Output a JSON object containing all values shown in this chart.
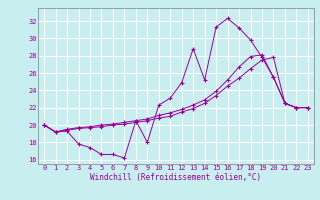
{
  "background_color": "#c8eef0",
  "line_color": "#990099",
  "grid_color": "#ffffff",
  "xlabel": "Windchill (Refroidissement éolien,°C)",
  "ylim_bottom": 15.5,
  "ylim_top": 33.5,
  "xlim_left": -0.5,
  "xlim_right": 23.5,
  "yticks": [
    16,
    18,
    20,
    22,
    24,
    26,
    28,
    30,
    32
  ],
  "xticks": [
    0,
    1,
    2,
    3,
    4,
    5,
    6,
    7,
    8,
    9,
    10,
    11,
    12,
    13,
    14,
    15,
    16,
    17,
    18,
    19,
    20,
    21,
    22,
    23
  ],
  "line1_x": [
    0,
    1,
    2,
    3,
    4,
    5,
    6,
    7,
    8,
    9,
    10,
    11,
    12,
    13,
    14,
    15,
    16,
    17,
    18,
    19,
    20,
    21,
    22,
    23
  ],
  "line1_y": [
    20.0,
    19.2,
    19.3,
    17.8,
    17.4,
    16.6,
    16.6,
    16.2,
    20.5,
    18.0,
    22.3,
    23.1,
    24.9,
    28.8,
    25.2,
    31.3,
    32.3,
    31.2,
    29.8,
    27.8,
    25.5,
    22.5,
    22.0,
    22.0
  ],
  "line2_x": [
    0,
    1,
    2,
    3,
    4,
    5,
    6,
    7,
    8,
    9,
    10,
    11,
    12,
    13,
    14,
    15,
    16,
    17,
    18,
    19,
    20,
    21,
    22,
    23
  ],
  "line2_y": [
    20.0,
    19.2,
    19.4,
    19.6,
    19.7,
    19.8,
    20.0,
    20.1,
    20.3,
    20.5,
    20.8,
    21.0,
    21.5,
    21.9,
    22.5,
    23.4,
    24.5,
    25.4,
    26.5,
    27.5,
    27.8,
    22.5,
    22.0,
    22.0
  ],
  "line3_x": [
    0,
    1,
    2,
    3,
    4,
    5,
    6,
    7,
    8,
    9,
    10,
    11,
    12,
    13,
    14,
    15,
    16,
    17,
    18,
    19,
    20,
    21,
    22,
    23
  ],
  "line3_y": [
    20.0,
    19.2,
    19.5,
    19.7,
    19.8,
    20.0,
    20.1,
    20.3,
    20.5,
    20.7,
    21.1,
    21.4,
    21.8,
    22.3,
    22.9,
    23.9,
    25.2,
    26.7,
    27.9,
    28.1,
    25.5,
    22.5,
    22.0,
    22.0
  ],
  "label_fontsize": 5.0,
  "tick_fontsize": 5.0,
  "xlabel_fontsize": 5.5
}
